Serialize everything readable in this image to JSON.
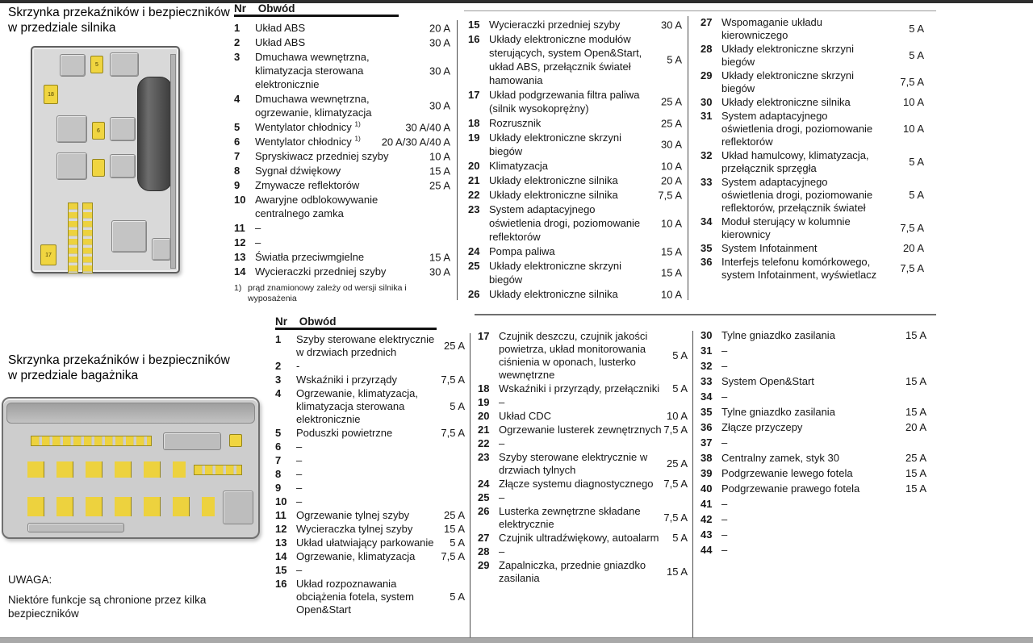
{
  "engine_section": {
    "title_line1": "Skrzynka przekaźników i bezpieczników",
    "title_line2": "w przedziale silnika",
    "table_header": {
      "nr": "Nr",
      "circuit": "Obwód"
    },
    "footnote_marker": "1)",
    "footnote_text": "prąd znamionowy zależy od wersji silnika i wyposażenia",
    "diagram": {
      "fuse_labels": [
        "5",
        "18",
        "6",
        "17"
      ]
    },
    "columns": [
      [
        {
          "nr": "1",
          "circuit": "Układ ABS",
          "amp": "20 A"
        },
        {
          "nr": "2",
          "circuit": "Układ ABS",
          "amp": "30 A"
        },
        {
          "nr": "3",
          "circuit": "Dmuchawa wewnętrzna, klimatyzacja sterowana elektronicznie",
          "amp": "30 A"
        },
        {
          "nr": "4",
          "circuit": "Dmuchawa wewnętrzna, ogrzewanie, klimatyzacja",
          "amp": "30 A"
        },
        {
          "nr": "5",
          "circuit": "Wentylator chłodnicy ",
          "sup": "1)",
          "amp": "30 A/40 A"
        },
        {
          "nr": "6",
          "circuit": "Wentylator chłodnicy ",
          "sup": "1)",
          "amp": "20 A/30 A/40 A"
        },
        {
          "nr": "7",
          "circuit": "Spryskiwacz przedniej szyby",
          "amp": "10 A"
        },
        {
          "nr": "8",
          "circuit": "Sygnał dźwiękowy",
          "amp": "15 A"
        },
        {
          "nr": "9",
          "circuit": "Zmywacze reflektorów",
          "amp": "25 A"
        },
        {
          "nr": "10",
          "circuit": "Awaryjne odblokowywanie centralnego zamka",
          "amp": ""
        },
        {
          "nr": "11",
          "circuit": "–",
          "amp": ""
        },
        {
          "nr": "12",
          "circuit": "–",
          "amp": ""
        },
        {
          "nr": "13",
          "circuit": "Światła przeciwmgielne",
          "amp": "15 A"
        },
        {
          "nr": "14",
          "circuit": "Wycieraczki przedniej szyby",
          "amp": "30 A"
        }
      ],
      [
        {
          "nr": "15",
          "circuit": "Wycieraczki przedniej szyby",
          "amp": "30 A"
        },
        {
          "nr": "16",
          "circuit": "Układy elektroniczne modułów sterujących, system Open&Start, układ ABS, przełącznik świateł hamowania",
          "amp": "5 A"
        },
        {
          "nr": "17",
          "circuit": "Układ podgrzewania filtra paliwa (silnik wysokoprężny)",
          "amp": "25 A"
        },
        {
          "nr": "18",
          "circuit": "Rozrusznik",
          "amp": "25 A"
        },
        {
          "nr": "19",
          "circuit": "Układy elektroniczne skrzyni biegów",
          "amp": "30 A"
        },
        {
          "nr": "20",
          "circuit": "Klimatyzacja",
          "amp": "10 A"
        },
        {
          "nr": "21",
          "circuit": "Układy elektroniczne silnika",
          "amp": "20 A"
        },
        {
          "nr": "22",
          "circuit": "Układy elektroniczne silnika",
          "amp": "7,5 A"
        },
        {
          "nr": "23",
          "circuit": "System adaptacyjnego oświetlenia drogi, poziomowanie reflektorów",
          "amp": "10 A"
        },
        {
          "nr": "24",
          "circuit": "Pompa paliwa",
          "amp": "15 A"
        },
        {
          "nr": "25",
          "circuit": "Układy elektroniczne skrzyni biegów",
          "amp": "15 A"
        },
        {
          "nr": "26",
          "circuit": "Układy elektroniczne silnika",
          "amp": "10 A"
        }
      ],
      [
        {
          "nr": "27",
          "circuit": "Wspomaganie układu kierowniczego",
          "amp": "5 A"
        },
        {
          "nr": "28",
          "circuit": "Układy elektroniczne skrzyni biegów",
          "amp": "5 A"
        },
        {
          "nr": "29",
          "circuit": "Układy elektroniczne skrzyni biegów",
          "amp": "7,5 A"
        },
        {
          "nr": "30",
          "circuit": "Układy elektroniczne silnika",
          "amp": "10 A"
        },
        {
          "nr": "31",
          "circuit": "System adaptacyjnego oświetlenia drogi, poziomowanie reflektorów",
          "amp": "10 A"
        },
        {
          "nr": "32",
          "circuit": "Układ hamulcowy, klimatyzacja, przełącznik sprzęgła",
          "amp": "5 A"
        },
        {
          "nr": "33",
          "circuit": "System adaptacyjnego oświetlenia drogi, poziomowanie reflektorów, przełącznik świateł",
          "amp": "5 A"
        },
        {
          "nr": "34",
          "circuit": "Moduł sterujący w kolumnie kierownicy",
          "amp": "7,5 A"
        },
        {
          "nr": "35",
          "circuit": "System Infotainment",
          "amp": "20 A"
        },
        {
          "nr": "36",
          "circuit": "Interfejs telefonu komórkowego, system Infotainment, wyświetlacz",
          "amp": "7,5 A"
        }
      ]
    ]
  },
  "trunk_section": {
    "title_line1": "Skrzynka przekaźników i bezpieczników",
    "title_line2": "w przedziale bagażnika",
    "table_header": {
      "nr": "Nr",
      "circuit": "Obwód"
    },
    "note_title": "UWAGA:",
    "note_text": "Niektóre funkcje są chronione przez kilka bezpieczników",
    "columns": [
      [
        {
          "nr": "1",
          "circuit": "Szyby sterowane elektrycznie w drzwiach przednich",
          "amp": "25 A"
        },
        {
          "nr": "2",
          "circuit": "-",
          "amp": ""
        },
        {
          "nr": "3",
          "circuit": "Wskaźniki i przyrządy",
          "amp": "7,5 A"
        },
        {
          "nr": "4",
          "circuit": "Ogrzewanie, klimatyzacja, klimatyzacja sterowana elektronicznie",
          "amp": "5 A"
        },
        {
          "nr": "5",
          "circuit": "Poduszki powietrzne",
          "amp": "7,5 A"
        },
        {
          "nr": "6",
          "circuit": "–",
          "amp": ""
        },
        {
          "nr": "7",
          "circuit": "–",
          "amp": ""
        },
        {
          "nr": "8",
          "circuit": "–",
          "amp": ""
        },
        {
          "nr": "9",
          "circuit": "–",
          "amp": ""
        },
        {
          "nr": "10",
          "circuit": "–",
          "amp": ""
        },
        {
          "nr": "11",
          "circuit": "Ogrzewanie tylnej szyby",
          "amp": "25 A"
        },
        {
          "nr": "12",
          "circuit": "Wycieraczka tylnej szyby",
          "amp": "15 A"
        },
        {
          "nr": "13",
          "circuit": "Układ ułatwiający parkowanie",
          "amp": "5 A"
        },
        {
          "nr": "14",
          "circuit": "Ogrzewanie, klimatyzacja",
          "amp": "7,5 A"
        },
        {
          "nr": "15",
          "circuit": "–",
          "amp": ""
        },
        {
          "nr": "16",
          "circuit": "Układ rozpoznawania obciążenia fotela, system Open&Start",
          "amp": "5 A"
        }
      ],
      [
        {
          "nr": "17",
          "circuit": "Czujnik deszczu, czujnik jakości powietrza, układ monitorowania ciśnienia w oponach, lusterko wewnętrzne",
          "amp": "5 A"
        },
        {
          "nr": "18",
          "circuit": "Wskaźniki i przyrządy, przełączniki",
          "amp": "5 A"
        },
        {
          "nr": "19",
          "circuit": "–",
          "amp": ""
        },
        {
          "nr": "20",
          "circuit": "Układ CDC",
          "amp": "10 A"
        },
        {
          "nr": "21",
          "circuit": "Ogrzewanie lusterek zewnętrznych",
          "amp": "7,5 A"
        },
        {
          "nr": "22",
          "circuit": "–",
          "amp": ""
        },
        {
          "nr": "23",
          "circuit": "Szyby sterowane elektrycznie w drzwiach tylnych",
          "amp": "25 A"
        },
        {
          "nr": "24",
          "circuit": "Złącze systemu diagnostycznego",
          "amp": "7,5 A"
        },
        {
          "nr": "25",
          "circuit": "–",
          "amp": ""
        },
        {
          "nr": "26",
          "circuit": "Lusterka zewnętrzne składane elektrycznie",
          "amp": "7,5 A"
        },
        {
          "nr": "27",
          "circuit": "Czujnik ultradźwiękowy, autoalarm",
          "amp": "5 A"
        },
        {
          "nr": "28",
          "circuit": "–",
          "amp": ""
        },
        {
          "nr": "29",
          "circuit": "Zapalniczka, przednie gniazdko zasilania",
          "amp": "15 A"
        }
      ],
      [
        {
          "nr": "30",
          "circuit": "Tylne gniazdko zasilania",
          "amp": "15 A"
        },
        {
          "nr": "31",
          "circuit": "–",
          "amp": ""
        },
        {
          "nr": "32",
          "circuit": "–",
          "amp": ""
        },
        {
          "nr": "33",
          "circuit": "System Open&Start",
          "amp": "15 A"
        },
        {
          "nr": "34",
          "circuit": "–",
          "amp": ""
        },
        {
          "nr": "35",
          "circuit": "Tylne gniazdko zasilania",
          "amp": "15 A"
        },
        {
          "nr": "36",
          "circuit": "Złącze przyczepy",
          "amp": "20 A"
        },
        {
          "nr": "37",
          "circuit": "–",
          "amp": ""
        },
        {
          "nr": "38",
          "circuit": "Centralny zamek, styk 30",
          "amp": "25 A"
        },
        {
          "nr": "39",
          "circuit": "Podgrzewanie lewego fotela",
          "amp": "15 A"
        },
        {
          "nr": "40",
          "circuit": "Podgrzewanie prawego fotela",
          "amp": "15 A"
        },
        {
          "nr": "41",
          "circuit": "–",
          "amp": ""
        },
        {
          "nr": "42",
          "circuit": "–",
          "amp": ""
        },
        {
          "nr": "43",
          "circuit": "–",
          "amp": ""
        },
        {
          "nr": "44",
          "circuit": "–",
          "amp": ""
        }
      ]
    ]
  }
}
